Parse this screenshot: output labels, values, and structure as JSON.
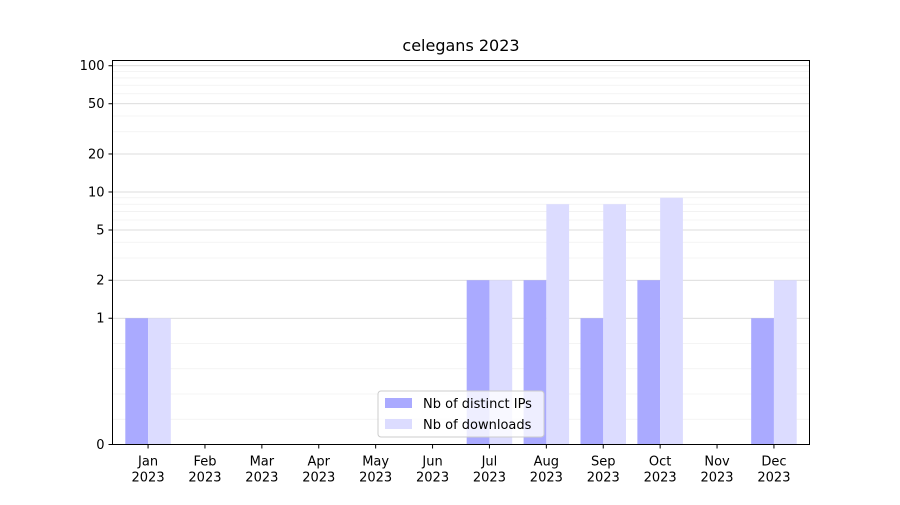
{
  "chart_data": {
    "type": "bar",
    "title": "celegans 2023",
    "xlabel": "",
    "ylabel": "",
    "y_scale": "symlog",
    "ylim": [
      0,
      110
    ],
    "y_ticks": [
      0,
      1,
      2,
      5,
      10,
      20,
      50,
      100
    ],
    "y_tick_labels": [
      "0",
      "1",
      "2",
      "5",
      "10",
      "20",
      "50",
      "100"
    ],
    "grid": true,
    "legend_position": "bottom-center",
    "categories": [
      {
        "month": "Jan",
        "year": "2023"
      },
      {
        "month": "Feb",
        "year": "2023"
      },
      {
        "month": "Mar",
        "year": "2023"
      },
      {
        "month": "Apr",
        "year": "2023"
      },
      {
        "month": "May",
        "year": "2023"
      },
      {
        "month": "Jun",
        "year": "2023"
      },
      {
        "month": "Jul",
        "year": "2023"
      },
      {
        "month": "Aug",
        "year": "2023"
      },
      {
        "month": "Sep",
        "year": "2023"
      },
      {
        "month": "Oct",
        "year": "2023"
      },
      {
        "month": "Nov",
        "year": "2023"
      },
      {
        "month": "Dec",
        "year": "2023"
      }
    ],
    "series": [
      {
        "name": "Nb of distinct IPs",
        "color": "#aaaaff",
        "values": [
          1,
          0,
          0,
          0,
          0,
          0,
          2,
          2,
          1,
          2,
          0,
          1
        ]
      },
      {
        "name": "Nb of downloads",
        "color": "#dcdcff",
        "values": [
          1,
          0,
          0,
          0,
          0,
          0,
          2,
          8,
          8,
          9,
          0,
          2
        ]
      }
    ]
  }
}
